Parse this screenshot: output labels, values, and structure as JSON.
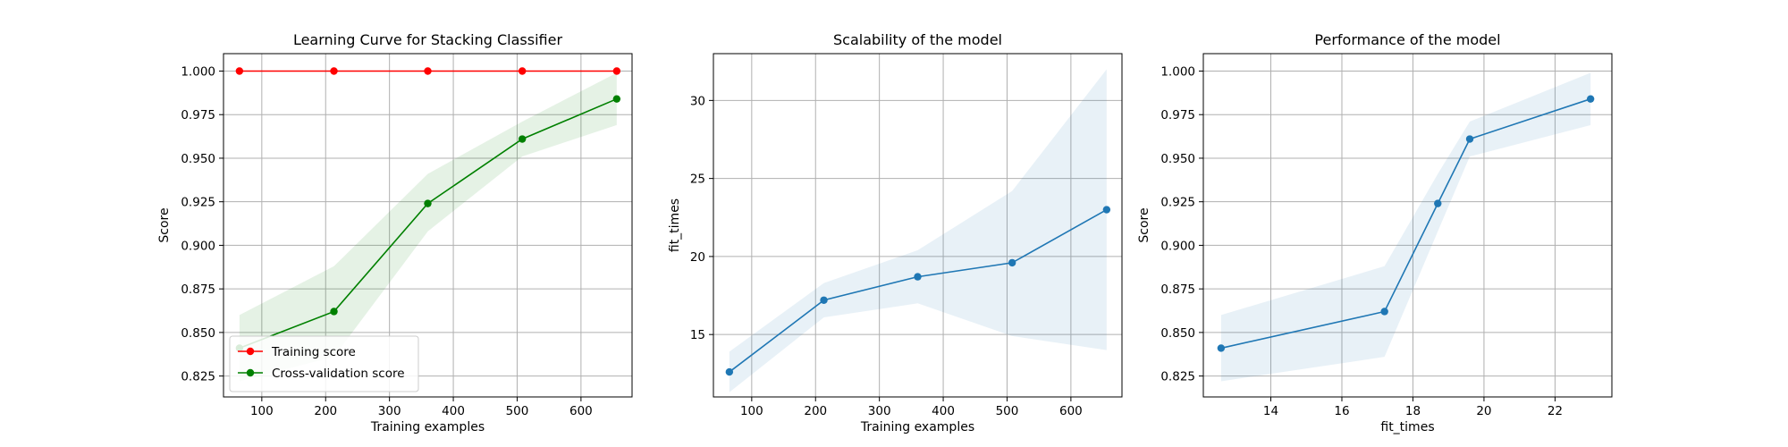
{
  "chart_data": [
    {
      "type": "line",
      "title": "Learning Curve for Stacking Classifier",
      "xlabel": "Training examples",
      "ylabel": "Score",
      "xlim": [
        40,
        680
      ],
      "ylim": [
        0.813,
        1.01
      ],
      "xticks": [
        100,
        200,
        300,
        400,
        500,
        600
      ],
      "yticks": [
        0.825,
        0.85,
        0.875,
        0.9,
        0.925,
        0.95,
        0.975,
        1.0
      ],
      "xtick_labels": [
        "100",
        "200",
        "300",
        "400",
        "500",
        "600"
      ],
      "ytick_labels": [
        "0.825",
        "0.850",
        "0.875",
        "0.900",
        "0.925",
        "0.950",
        "0.975",
        "1.000"
      ],
      "grid": true,
      "legend_position": "lower-left",
      "series": [
        {
          "name": "Training score",
          "color": "#ff0000",
          "x": [
            65,
            213,
            360,
            508,
            656
          ],
          "y": [
            1.0,
            1.0,
            1.0,
            1.0,
            1.0
          ],
          "band_lower": [
            1.0,
            1.0,
            1.0,
            1.0,
            1.0
          ],
          "band_upper": [
            1.0,
            1.0,
            1.0,
            1.0,
            1.0
          ]
        },
        {
          "name": "Cross-validation score",
          "color": "#008000",
          "x": [
            65,
            213,
            360,
            508,
            656
          ],
          "y": [
            0.841,
            0.862,
            0.924,
            0.961,
            0.984
          ],
          "band_lower": [
            0.822,
            0.836,
            0.908,
            0.951,
            0.969
          ],
          "band_upper": [
            0.86,
            0.888,
            0.941,
            0.971,
            0.999
          ]
        }
      ]
    },
    {
      "type": "line",
      "title": "Scalability of the model",
      "xlabel": "Training examples",
      "ylabel": "fit_times",
      "xlim": [
        40,
        680
      ],
      "ylim": [
        11.0,
        33.0
      ],
      "xticks": [
        100,
        200,
        300,
        400,
        500,
        600
      ],
      "yticks": [
        15,
        20,
        25,
        30
      ],
      "xtick_labels": [
        "100",
        "200",
        "300",
        "400",
        "500",
        "600"
      ],
      "ytick_labels": [
        "15",
        "20",
        "25",
        "30"
      ],
      "grid": true,
      "series": [
        {
          "color": "#1f77b4",
          "x": [
            65,
            213,
            360,
            508,
            656
          ],
          "y": [
            12.6,
            17.2,
            18.7,
            19.6,
            23.0
          ],
          "band_lower": [
            11.3,
            16.1,
            17.0,
            14.9,
            14.0
          ],
          "band_upper": [
            13.9,
            18.3,
            20.4,
            24.2,
            32.0
          ]
        }
      ]
    },
    {
      "type": "line",
      "title": "Performance of the model",
      "xlabel": "fit_times",
      "ylabel": "Score",
      "xlim": [
        12.1,
        23.6
      ],
      "ylim": [
        0.813,
        1.01
      ],
      "xticks": [
        14,
        16,
        18,
        20,
        22
      ],
      "yticks": [
        0.825,
        0.85,
        0.875,
        0.9,
        0.925,
        0.95,
        0.975,
        1.0
      ],
      "xtick_labels": [
        "14",
        "16",
        "18",
        "20",
        "22"
      ],
      "ytick_labels": [
        "0.825",
        "0.850",
        "0.875",
        "0.900",
        "0.925",
        "0.950",
        "0.975",
        "1.000"
      ],
      "grid": true,
      "series": [
        {
          "color": "#1f77b4",
          "x": [
            12.6,
            17.2,
            18.7,
            19.6,
            23.0
          ],
          "y": [
            0.841,
            0.862,
            0.924,
            0.961,
            0.984
          ],
          "band_lower": [
            0.822,
            0.836,
            0.908,
            0.951,
            0.969
          ],
          "band_upper": [
            0.86,
            0.888,
            0.941,
            0.971,
            0.999
          ]
        }
      ]
    }
  ]
}
